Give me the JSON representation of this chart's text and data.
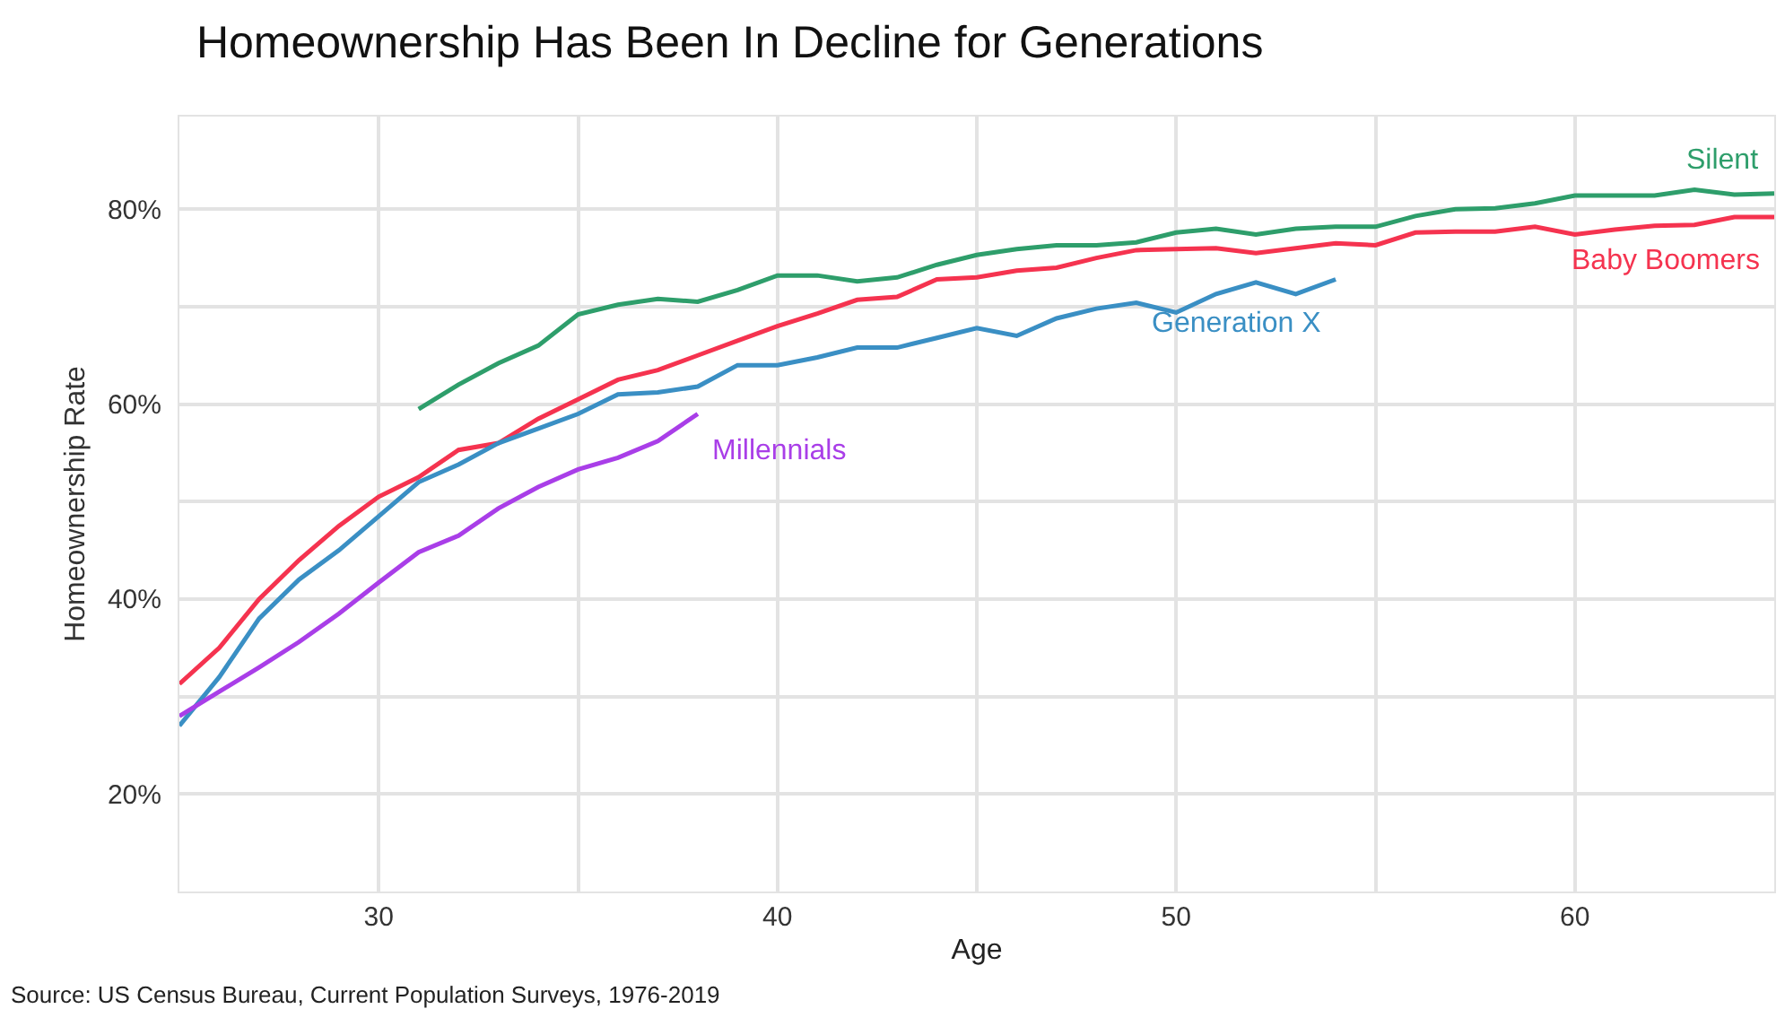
{
  "chart_data": {
    "type": "line",
    "title": "Homeownership Has Been In Decline for Generations",
    "xlabel": "Age",
    "ylabel": "Homeownership Rate",
    "xlim": [
      25,
      65
    ],
    "ylim": [
      10,
      89.5
    ],
    "xticks": [
      {
        "value": 25,
        "label": null
      },
      30,
      {
        "value": 35,
        "label": null
      },
      40,
      {
        "value": 45,
        "label": null
      },
      50,
      {
        "value": 55,
        "label": null
      },
      60,
      {
        "value": 65,
        "label": null
      }
    ],
    "yticks": [
      {
        "value": 10,
        "label": null
      },
      {
        "value": 20,
        "label": "20%"
      },
      {
        "value": 30,
        "label": null
      },
      {
        "value": 40,
        "label": "40%"
      },
      {
        "value": 50,
        "label": null
      },
      {
        "value": 60,
        "label": "60%"
      },
      {
        "value": 70,
        "label": null
      },
      {
        "value": 80,
        "label": "80%"
      }
    ],
    "grid": true,
    "legend": false,
    "marker": "none",
    "line_style": "solid",
    "series": [
      {
        "name": "Silent",
        "color": "#2e9e6b",
        "x": [
          31,
          32,
          33,
          34,
          35,
          36,
          37,
          38,
          39,
          40,
          41,
          42,
          43,
          44,
          45,
          46,
          47,
          48,
          49,
          50,
          51,
          52,
          53,
          54,
          55,
          56,
          57,
          58,
          59,
          60,
          61,
          62,
          63,
          64,
          65
        ],
        "values": [
          59.5,
          62,
          64.2,
          66,
          69.2,
          70.2,
          70.8,
          70.5,
          71.7,
          73.2,
          73.2,
          72.6,
          73,
          74.3,
          75.3,
          75.9,
          76.3,
          76.3,
          76.6,
          77.6,
          78,
          77.4,
          78,
          78.2,
          78.2,
          79.3,
          80,
          80.1,
          80.6,
          81.4,
          81.4,
          81.4,
          82,
          81.5,
          81.6
        ]
      },
      {
        "name": "Baby Boomers",
        "color": "#f5334f",
        "x": [
          25,
          26,
          27,
          28,
          29,
          30,
          31,
          32,
          33,
          34,
          35,
          36,
          37,
          38,
          39,
          40,
          41,
          42,
          43,
          44,
          45,
          46,
          47,
          48,
          49,
          50,
          51,
          52,
          53,
          54,
          55,
          56,
          57,
          58,
          59,
          60,
          61,
          62,
          63,
          64,
          65
        ],
        "values": [
          31.3,
          35,
          40,
          44,
          47.5,
          50.5,
          52.5,
          55.3,
          56,
          58.5,
          60.5,
          62.5,
          63.5,
          65,
          66.5,
          68,
          69.3,
          70.7,
          71,
          72.8,
          73,
          73.7,
          74,
          75,
          75.8,
          75.9,
          76,
          75.5,
          76,
          76.5,
          76.3,
          77.6,
          77.7,
          77.7,
          78.2,
          77.4,
          77.9,
          78.3,
          78.4,
          79.2,
          79.2
        ]
      },
      {
        "name": "Generation X",
        "color": "#3a8fc4",
        "x": [
          25,
          26,
          27,
          28,
          29,
          30,
          31,
          32,
          33,
          34,
          35,
          36,
          37,
          38,
          39,
          40,
          41,
          42,
          43,
          44,
          45,
          46,
          47,
          48,
          49,
          50,
          51,
          52,
          53,
          54
        ],
        "values": [
          27,
          32,
          38,
          42,
          45,
          48.5,
          52,
          53.8,
          56,
          57.5,
          59,
          61,
          61.2,
          61.8,
          64,
          64,
          64.8,
          65.8,
          65.8,
          66.8,
          67.8,
          67,
          68.8,
          69.8,
          70.4,
          69.4,
          71.3,
          72.5,
          71.3,
          72.8
        ]
      },
      {
        "name": "Millennials",
        "color": "#a93ee8",
        "x": [
          25,
          26,
          27,
          28,
          29,
          30,
          31,
          32,
          33,
          34,
          35,
          36,
          37,
          38
        ],
        "values": [
          28,
          30.5,
          33,
          35.6,
          38.5,
          41.7,
          44.8,
          46.5,
          49.3,
          51.5,
          53.3,
          54.5,
          56.2,
          59
        ]
      }
    ],
    "annotations": [
      "Source: US Census Bureau, Current Population Surveys, 1976-2019"
    ]
  }
}
